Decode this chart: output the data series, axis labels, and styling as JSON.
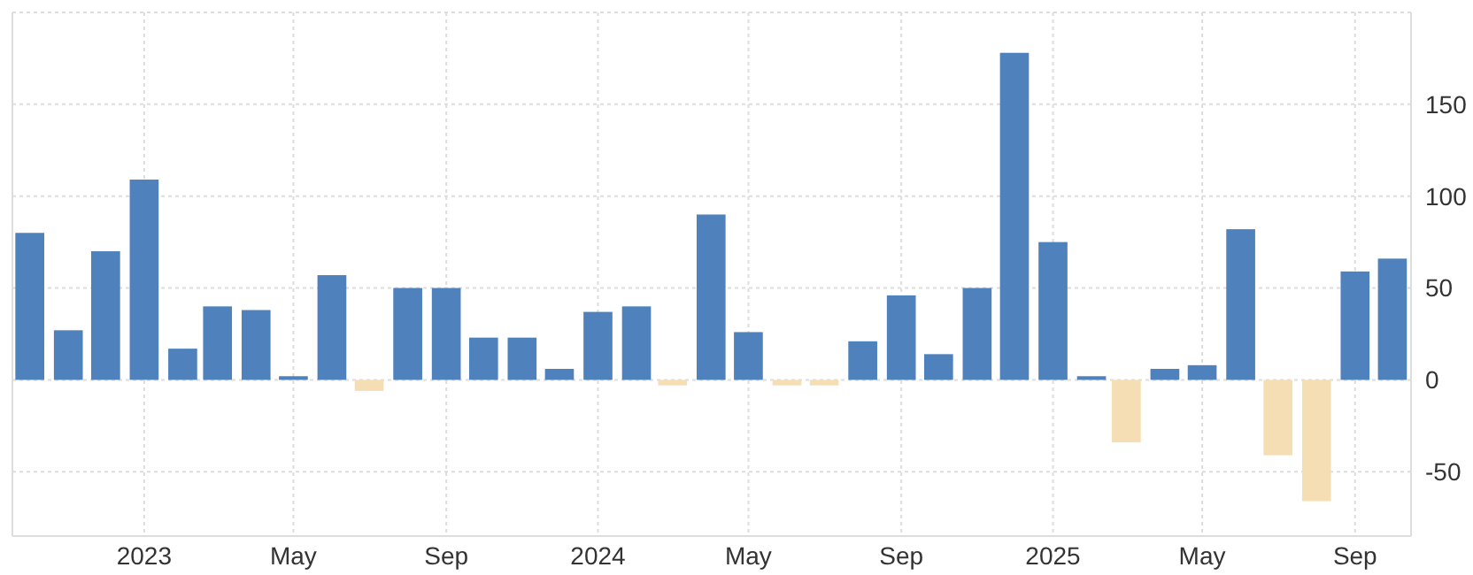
{
  "chart_data": {
    "type": "bar",
    "x": [
      "2022-10",
      "2022-11",
      "2022-12",
      "2023-01",
      "2023-02",
      "2023-03",
      "2023-04",
      "2023-05",
      "2023-06",
      "2023-07",
      "2023-08",
      "2023-09",
      "2023-10",
      "2023-11",
      "2023-12",
      "2024-01",
      "2024-02",
      "2024-03",
      "2024-04",
      "2024-05",
      "2024-06",
      "2024-07",
      "2024-08",
      "2024-09",
      "2024-10",
      "2024-11",
      "2024-12",
      "2025-01",
      "2025-02",
      "2025-03",
      "2025-04",
      "2025-05",
      "2025-06",
      "2025-07",
      "2025-08",
      "2025-09",
      "2025-10"
    ],
    "values": [
      80,
      27,
      70,
      109,
      17,
      40,
      38,
      2,
      57,
      -6,
      50,
      50,
      23,
      23,
      6,
      37,
      40,
      -3,
      90,
      26,
      -3,
      -3,
      21,
      46,
      14,
      50,
      178,
      75,
      2,
      -34,
      6,
      8,
      82,
      -41,
      -66,
      59,
      66
    ],
    "colors": [
      "#4f81bd",
      "#4f81bd",
      "#4f81bd",
      "#4f81bd",
      "#4f81bd",
      "#4f81bd",
      "#4f81bd",
      "#4f81bd",
      "#4f81bd",
      "#f5deb3",
      "#4f81bd",
      "#4f81bd",
      "#4f81bd",
      "#4f81bd",
      "#4f81bd",
      "#4f81bd",
      "#4f81bd",
      "#f5deb3",
      "#4f81bd",
      "#4f81bd",
      "#f5deb3",
      "#f5deb3",
      "#4f81bd",
      "#4f81bd",
      "#4f81bd",
      "#4f81bd",
      "#4f81bd",
      "#4f81bd",
      "#4f81bd",
      "#f5deb3",
      "#4f81bd",
      "#4f81bd",
      "#4f81bd",
      "#f5deb3",
      "#f5deb3",
      "#4f81bd",
      "#4f81bd"
    ],
    "xlim": [
      "2022-09-17",
      "2025-10-16"
    ],
    "xticks": [
      {
        "value": "2023-01",
        "label": "2023"
      },
      {
        "value": "2023-05",
        "label": "May"
      },
      {
        "value": "2023-09",
        "label": "Sep"
      },
      {
        "value": "2024-01",
        "label": "2024"
      },
      {
        "value": "2024-05",
        "label": "May"
      },
      {
        "value": "2024-09",
        "label": "Sep"
      },
      {
        "value": "2025-01",
        "label": "2025"
      },
      {
        "value": "2025-05",
        "label": "May"
      },
      {
        "value": "2025-09",
        "label": "Sep"
      }
    ],
    "ylim": [
      -85,
      200
    ],
    "yticks": [
      -50,
      0,
      50,
      100,
      150,
      {
        "value": 200,
        "label": null
      }
    ],
    "grid": true
  }
}
